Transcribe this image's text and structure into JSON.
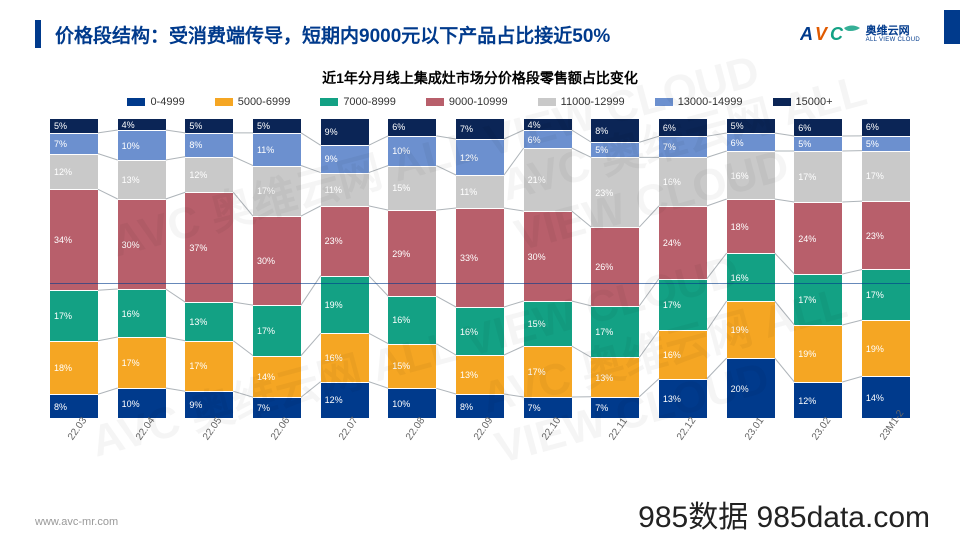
{
  "header": {
    "title": "价格段结构：受消费端传导，短期内9000元以下产品占比接近50%",
    "logo_cn": "奥维云网",
    "logo_en": "ALL VIEW CLOUD"
  },
  "chart": {
    "title": "近1年分月线上集成灶市场分价格段零售额占比变化",
    "type": "stacked-bar",
    "legend": [
      {
        "label": "0-4999",
        "color": "#003a8c"
      },
      {
        "label": "5000-6999",
        "color": "#f5a623"
      },
      {
        "label": "7000-8999",
        "color": "#13a184"
      },
      {
        "label": "9000-10999",
        "color": "#b85f6b"
      },
      {
        "label": "11000-12999",
        "color": "#c9c9c9"
      },
      {
        "label": "13000-14999",
        "color": "#6c90cf"
      },
      {
        "label": "15000+",
        "color": "#0b2556"
      }
    ],
    "categories": [
      "22.03",
      "22.04",
      "22.05",
      "22.06",
      "22.07",
      "22.08",
      "22.09",
      "22.10",
      "22.11",
      "22.12",
      "23.01",
      "23.02",
      "23M1-2"
    ],
    "series": [
      {
        "name": "15000+",
        "color": "#0b2556",
        "values": [
          5,
          4,
          5,
          5,
          9,
          6,
          7,
          4,
          8,
          6,
          5,
          6,
          6
        ]
      },
      {
        "name": "13000-14999",
        "color": "#6c90cf",
        "values": [
          7,
          10,
          8,
          11,
          9,
          10,
          12,
          6,
          5,
          7,
          6,
          5,
          5
        ]
      },
      {
        "name": "11000-12999",
        "color": "#c9c9c9",
        "values": [
          12,
          13,
          12,
          17,
          11,
          15,
          11,
          21,
          23,
          16,
          16,
          17,
          17
        ]
      },
      {
        "name": "9000-10999",
        "color": "#b85f6b",
        "values": [
          34,
          30,
          37,
          30,
          23,
          29,
          33,
          30,
          26,
          24,
          18,
          24,
          23
        ]
      },
      {
        "name": "7000-8999",
        "color": "#13a184",
        "values": [
          17,
          16,
          13,
          17,
          19,
          16,
          16,
          15,
          17,
          17,
          16,
          17,
          17
        ]
      },
      {
        "name": "5000-6999",
        "color": "#f5a623",
        "values": [
          18,
          17,
          17,
          14,
          16,
          15,
          13,
          17,
          13,
          16,
          19,
          19,
          19
        ]
      },
      {
        "name": "0-4999",
        "color": "#003a8c",
        "values": [
          8,
          10,
          9,
          7,
          12,
          10,
          8,
          7,
          7,
          13,
          20,
          12,
          14
        ]
      }
    ],
    "connector_color": "#aeb4b9",
    "reference_line": 50
  },
  "footer": {
    "url": "www.avc-mr.com",
    "right": "985数据 985data.com"
  },
  "watermark": "AVC 奥维云网 ALL VIEW CLOUD"
}
